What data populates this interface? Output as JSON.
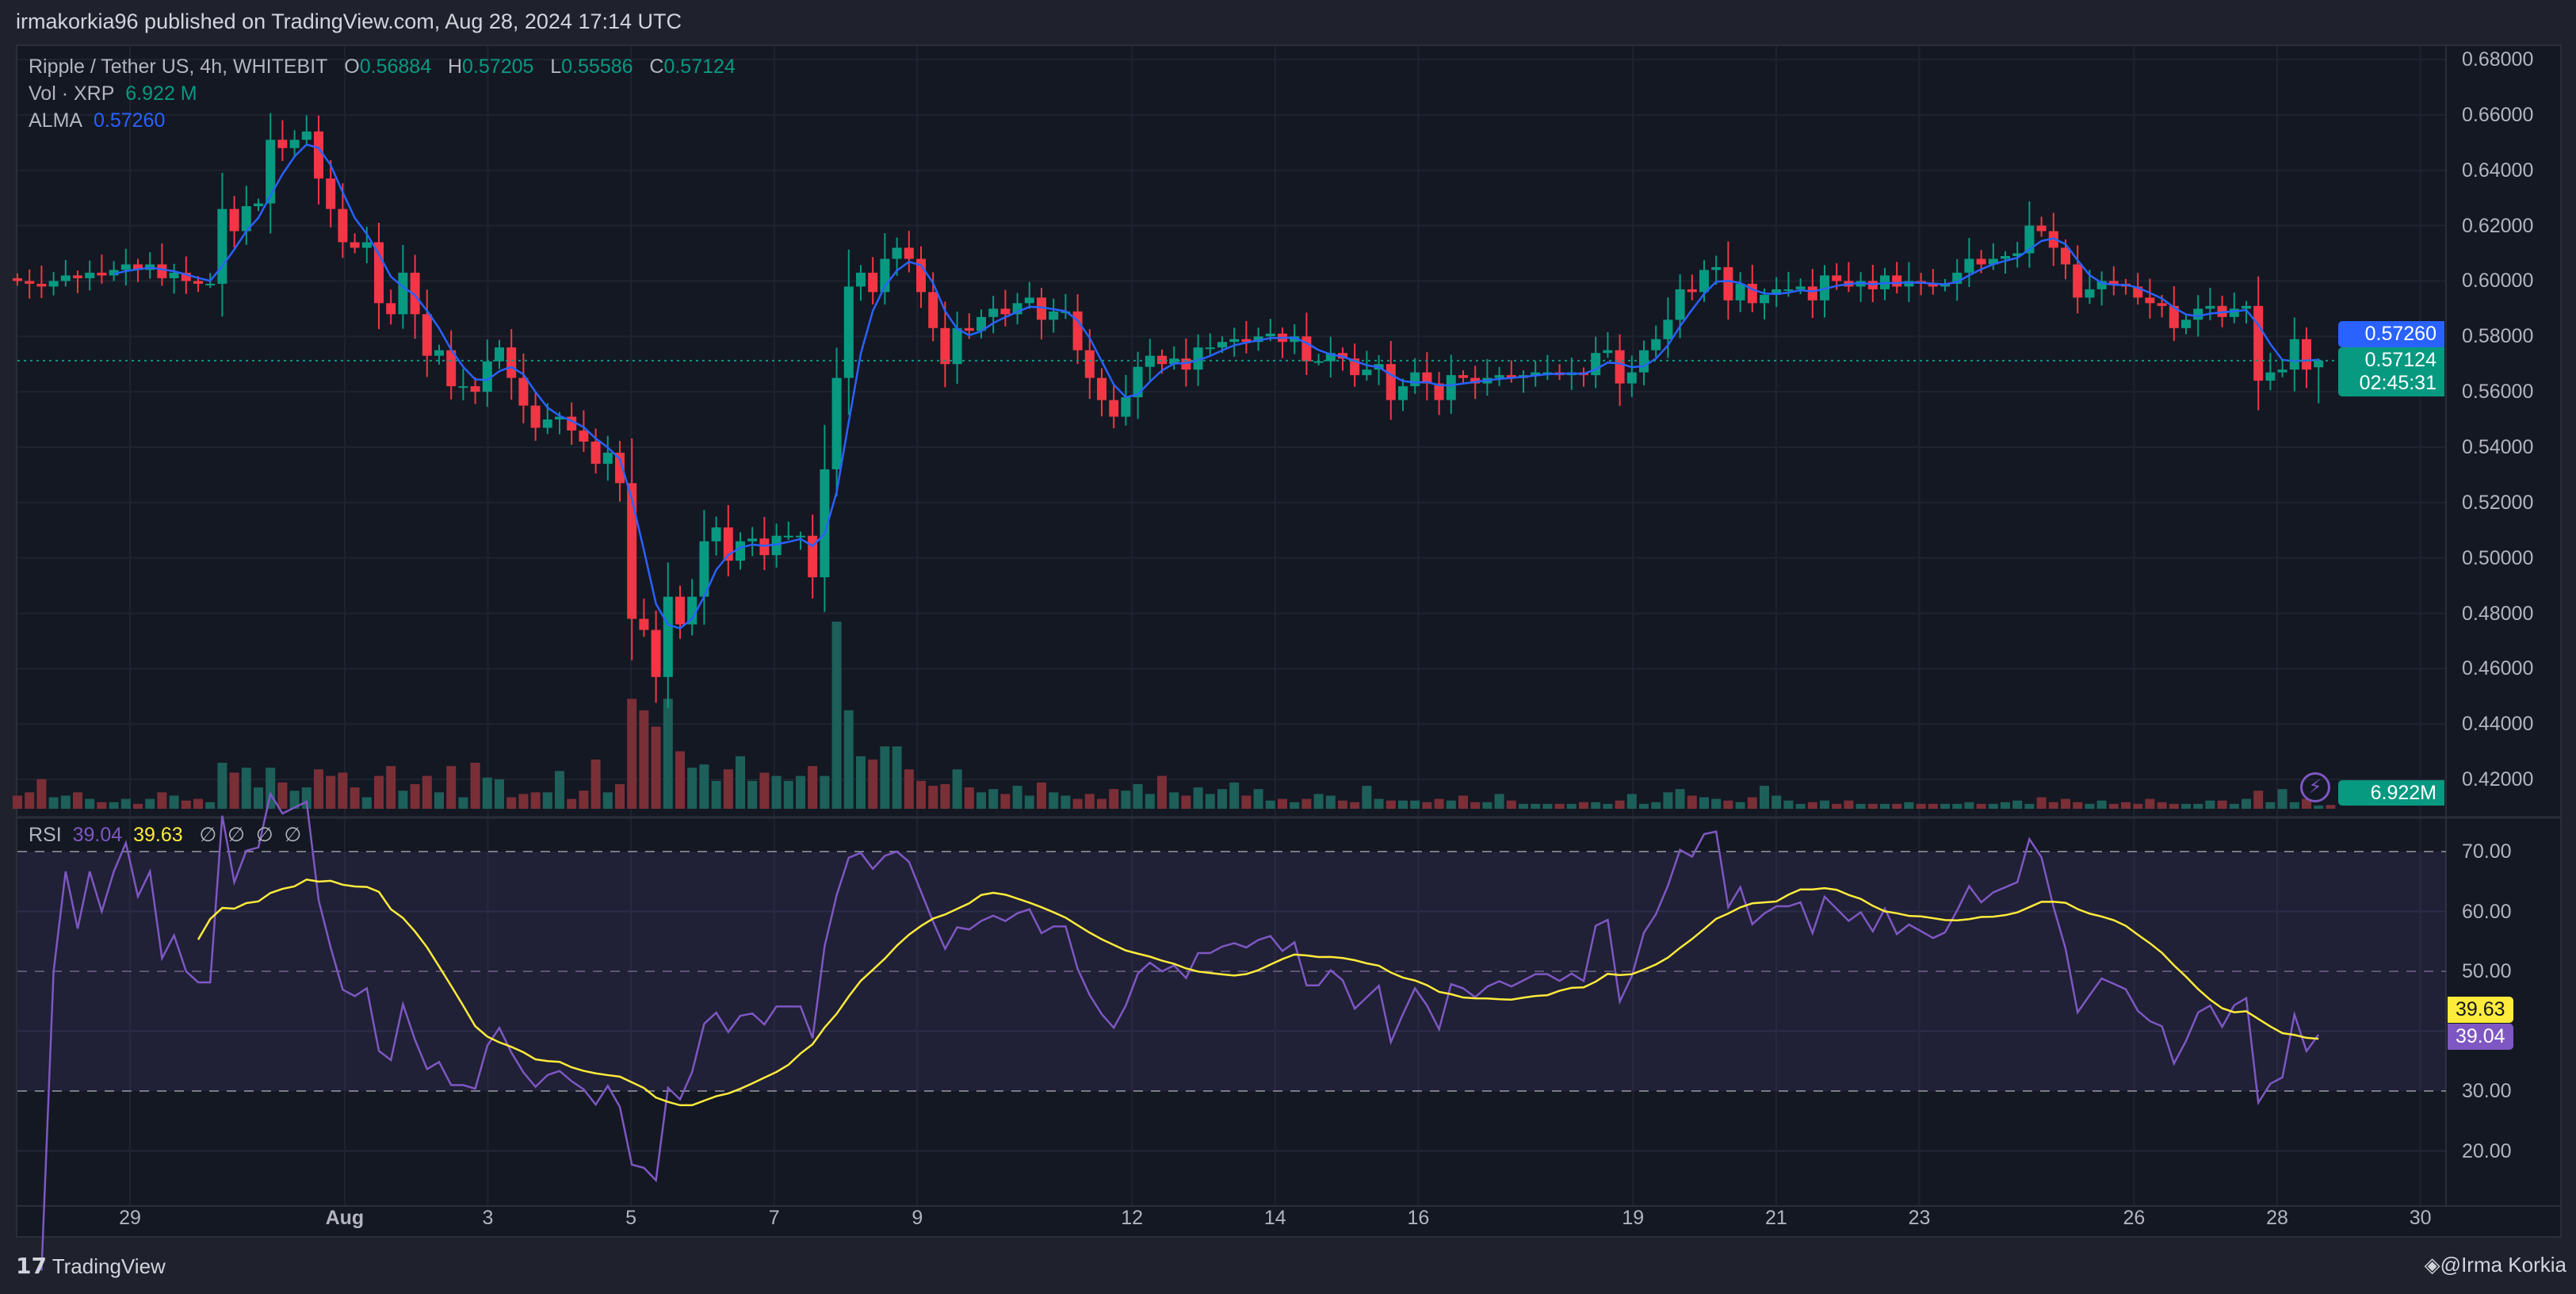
{
  "header": {
    "published": "irmakorkia96 published on TradingView.com, Aug 28, 2024 17:14 UTC"
  },
  "legend": {
    "symbol": "Ripple / Tether US, 4h, WHITEBIT",
    "o_label": "O",
    "o": "0.56884",
    "h_label": "H",
    "h": "0.57205",
    "l_label": "L",
    "l": "0.55586",
    "c_label": "C",
    "c": "0.57124",
    "vol_label": "Vol · XRP",
    "vol": "6.922 M",
    "alma_label": "ALMA",
    "alma": "0.57260"
  },
  "rsi_legend": {
    "label": "RSI",
    "rsi": "39.04",
    "ma": "39.63",
    "na": [
      "∅",
      "∅",
      "∅",
      "∅"
    ]
  },
  "price_tags": {
    "alma": "0.57260",
    "last": "0.57124",
    "countdown": "02:45:31",
    "volume": "6.922M"
  },
  "rsi_tags": {
    "ma": "39.63",
    "rsi": "39.04"
  },
  "footer": {
    "brand": "TradingView",
    "author": "@Irma Korkia"
  },
  "colors": {
    "up": "#089981",
    "down": "#f23645",
    "alma": "#2962ff",
    "rsi": "#7e57c2",
    "rsi_ma": "#ffeb3b",
    "background": "#141823"
  },
  "chart_data": {
    "type": "candlestick",
    "symbol": "XRP/USDT",
    "interval": "4h",
    "price_axis": {
      "ticks": [
        "0.68000",
        "0.66000",
        "0.64000",
        "0.62000",
        "0.60000",
        "0.58000",
        "0.56000",
        "0.54000",
        "0.52000",
        "0.50000",
        "0.48000",
        "0.46000",
        "0.44000",
        "0.42000"
      ],
      "range": [
        0.415,
        0.685
      ]
    },
    "time_axis": {
      "ticks": [
        "29",
        "Aug",
        "3",
        "5",
        "7",
        "9",
        "12",
        "14",
        "16",
        "19",
        "21",
        "23",
        "26",
        "28",
        "30"
      ],
      "days_from_jul29": [
        0,
        3,
        5,
        7,
        9,
        11,
        14,
        16,
        18,
        21,
        23,
        25,
        28,
        30,
        32
      ]
    },
    "last_candle": {
      "open": 0.56884,
      "high": 0.57205,
      "low": 0.55586,
      "close": 0.57124
    },
    "close": [
      0.6,
      0.599,
      0.598,
      0.6,
      0.602,
      0.601,
      0.603,
      0.602,
      0.604,
      0.606,
      0.604,
      0.606,
      0.601,
      0.603,
      0.6,
      0.599,
      0.599,
      0.626,
      0.618,
      0.627,
      0.628,
      0.651,
      0.648,
      0.651,
      0.654,
      0.637,
      0.626,
      0.614,
      0.612,
      0.614,
      0.592,
      0.588,
      0.603,
      0.588,
      0.573,
      0.575,
      0.562,
      0.562,
      0.56,
      0.571,
      0.576,
      0.565,
      0.555,
      0.547,
      0.55,
      0.551,
      0.546,
      0.542,
      0.534,
      0.538,
      0.527,
      0.478,
      0.474,
      0.457,
      0.486,
      0.476,
      0.486,
      0.506,
      0.511,
      0.499,
      0.506,
      0.507,
      0.501,
      0.508,
      0.508,
      0.508,
      0.493,
      0.532,
      0.565,
      0.598,
      0.603,
      0.596,
      0.608,
      0.612,
      0.608,
      0.596,
      0.583,
      0.57,
      0.583,
      0.582,
      0.587,
      0.59,
      0.588,
      0.592,
      0.594,
      0.586,
      0.589,
      0.589,
      0.575,
      0.565,
      0.557,
      0.551,
      0.558,
      0.569,
      0.573,
      0.57,
      0.572,
      0.568,
      0.576,
      0.576,
      0.578,
      0.579,
      0.578,
      0.58,
      0.581,
      0.578,
      0.58,
      0.571,
      0.571,
      0.574,
      0.572,
      0.566,
      0.568,
      0.57,
      0.557,
      0.562,
      0.567,
      0.563,
      0.557,
      0.566,
      0.565,
      0.563,
      0.565,
      0.566,
      0.565,
      0.566,
      0.567,
      0.567,
      0.566,
      0.567,
      0.566,
      0.574,
      0.575,
      0.563,
      0.567,
      0.575,
      0.579,
      0.586,
      0.597,
      0.596,
      0.604,
      0.605,
      0.593,
      0.599,
      0.592,
      0.595,
      0.597,
      0.597,
      0.598,
      0.593,
      0.602,
      0.6,
      0.598,
      0.6,
      0.597,
      0.602,
      0.598,
      0.6,
      0.599,
      0.598,
      0.599,
      0.603,
      0.608,
      0.606,
      0.608,
      0.609,
      0.61,
      0.62,
      0.618,
      0.612,
      0.606,
      0.594,
      0.597,
      0.6,
      0.599,
      0.598,
      0.594,
      0.592,
      0.591,
      0.583,
      0.586,
      0.59,
      0.591,
      0.587,
      0.59,
      0.591,
      0.564,
      0.567,
      0.568,
      0.579,
      0.568,
      0.57124
    ],
    "volume_m": [
      24,
      30,
      54,
      21,
      24,
      30,
      18,
      12,
      12,
      18,
      9,
      18,
      30,
      24,
      15,
      18,
      12,
      84,
      66,
      75,
      39,
      75,
      48,
      33,
      39,
      72,
      60,
      66,
      39,
      21,
      60,
      78,
      33,
      45,
      60,
      30,
      78,
      21,
      84,
      57,
      54,
      21,
      27,
      30,
      30,
      69,
      18,
      33,
      90,
      30,
      45,
      201,
      180,
      150,
      201,
      105,
      75,
      81,
      51,
      72,
      96,
      51,
      66,
      60,
      51,
      60,
      78,
      60,
      342,
      180,
      96,
      90,
      114,
      114,
      72,
      51,
      42,
      45,
      72,
      39,
      30,
      36,
      27,
      42,
      24,
      48,
      30,
      24,
      18,
      27,
      18,
      36,
      33,
      45,
      27,
      60,
      30,
      24,
      39,
      27,
      36,
      48,
      24,
      36,
      15,
      18,
      12,
      18,
      27,
      24,
      15,
      12,
      42,
      18,
      15,
      15,
      15,
      12,
      18,
      15,
      24,
      12,
      12,
      27,
      15,
      9,
      9,
      9,
      9,
      9,
      12,
      12,
      9,
      15,
      27,
      9,
      12,
      30,
      36,
      24,
      21,
      18,
      15,
      12,
      21,
      42,
      24,
      15,
      9,
      12,
      15,
      9,
      15,
      9,
      9,
      9,
      9,
      12,
      9,
      9,
      9,
      9,
      12,
      9,
      9,
      12,
      15,
      9,
      21,
      12,
      18,
      12,
      9,
      15,
      9,
      12,
      9,
      18,
      12,
      9,
      9,
      9,
      15,
      15,
      9,
      18,
      33,
      12,
      36,
      12,
      18,
      6,
      6.922
    ],
    "indicators": {
      "alma": "ALMA",
      "rsi": {
        "ticks": [
          "70.00",
          "60.00",
          "50.00",
          "30.00",
          "20.00"
        ],
        "bands": [
          30,
          50,
          70
        ]
      }
    }
  }
}
